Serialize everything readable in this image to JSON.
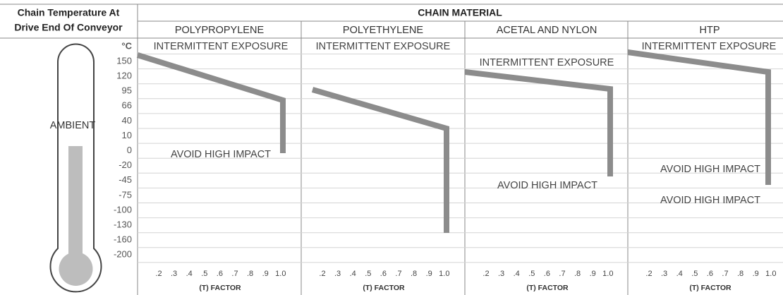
{
  "header": {
    "left_title": [
      "Chain Temperature At",
      "Drive End Of Conveyor"
    ],
    "material_title": "CHAIN MATERIAL"
  },
  "thermometer": {
    "label": "AMBIENT"
  },
  "y_axis": {
    "unit": "°C",
    "labels": [
      "150",
      "120",
      "95",
      "66",
      "40",
      "10",
      "0",
      "-20",
      "-45",
      "-75",
      "-100",
      "-130",
      "-160",
      "-200"
    ]
  },
  "x_axis": {
    "ticks": [
      ".2",
      ".3",
      ".4",
      ".5",
      ".6",
      ".7",
      ".8",
      ".9",
      "1.0"
    ],
    "label": "(T) FACTOR"
  },
  "panels": [
    {
      "name": "POLYPROPYLENE",
      "annotations": [
        "INTERMITTENT EXPOSURE",
        "AVOID HIGH IMPACT"
      ]
    },
    {
      "name": "POLYETHYLENE",
      "annotations": [
        "INTERMITTENT EXPOSURE"
      ]
    },
    {
      "name": "ACETAL AND NYLON",
      "annotations": [
        "INTERMITTENT EXPOSURE",
        "AVOID HIGH IMPACT"
      ]
    },
    {
      "name": "HTP",
      "annotations": [
        "INTERMITTENT EXPOSURE",
        "AVOID HIGH IMPACT",
        "AVOID HIGH IMPACT"
      ]
    }
  ]
}
